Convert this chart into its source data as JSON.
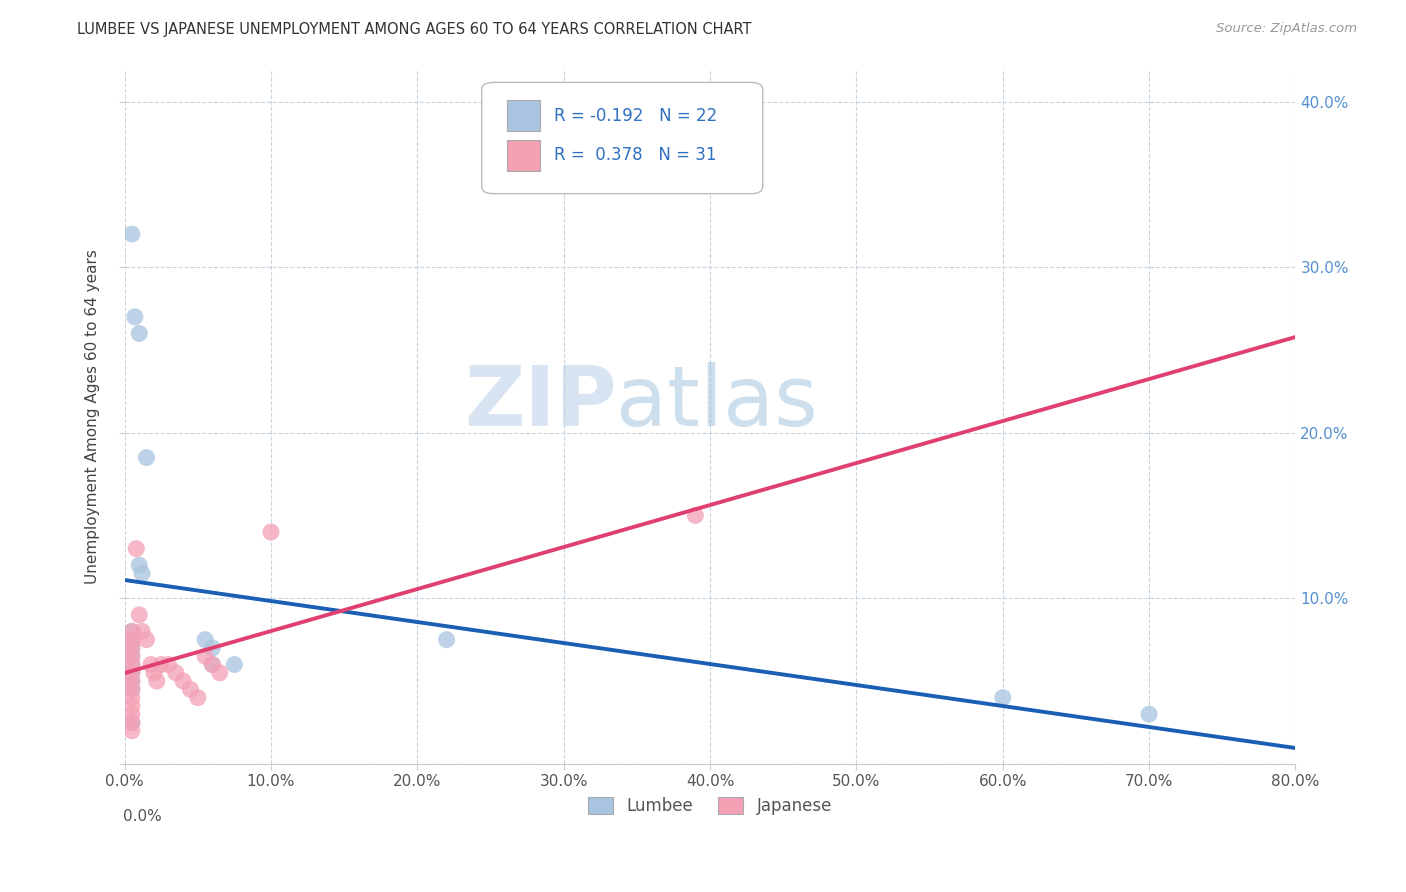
{
  "title": "LUMBEE VS JAPANESE UNEMPLOYMENT AMONG AGES 60 TO 64 YEARS CORRELATION CHART",
  "source": "Source: ZipAtlas.com",
  "ylabel": "Unemployment Among Ages 60 to 64 years",
  "xlim": [
    0,
    0.8
  ],
  "ylim": [
    0,
    0.42
  ],
  "xticks": [
    0.0,
    0.1,
    0.2,
    0.3,
    0.4,
    0.5,
    0.6,
    0.7,
    0.8
  ],
  "xticklabels": [
    "0.0%",
    "10.0%",
    "20.0%",
    "30.0%",
    "40.0%",
    "50.0%",
    "60.0%",
    "70.0%",
    "80.0%"
  ],
  "yticks": [
    0.0,
    0.1,
    0.2,
    0.3,
    0.4
  ],
  "yticklabels": [
    "",
    "10.0%",
    "20.0%",
    "30.0%",
    "40.0%"
  ],
  "lumbee_x": [
    0.005,
    0.007,
    0.01,
    0.01,
    0.012,
    0.015,
    0.005,
    0.005,
    0.005,
    0.005,
    0.005,
    0.005,
    0.005,
    0.005,
    0.005,
    0.055,
    0.06,
    0.06,
    0.075,
    0.22,
    0.6,
    0.7
  ],
  "lumbee_y": [
    0.32,
    0.27,
    0.26,
    0.12,
    0.115,
    0.185,
    0.08,
    0.075,
    0.07,
    0.065,
    0.06,
    0.055,
    0.05,
    0.045,
    0.025,
    0.075,
    0.07,
    0.06,
    0.06,
    0.075,
    0.04,
    0.03
  ],
  "japanese_x": [
    0.005,
    0.005,
    0.005,
    0.005,
    0.005,
    0.005,
    0.005,
    0.005,
    0.005,
    0.005,
    0.005,
    0.005,
    0.005,
    0.008,
    0.01,
    0.012,
    0.015,
    0.018,
    0.02,
    0.022,
    0.025,
    0.03,
    0.035,
    0.04,
    0.045,
    0.05,
    0.055,
    0.06,
    0.065,
    0.1,
    0.39
  ],
  "japanese_y": [
    0.08,
    0.075,
    0.07,
    0.065,
    0.06,
    0.055,
    0.05,
    0.045,
    0.04,
    0.035,
    0.03,
    0.025,
    0.02,
    0.13,
    0.09,
    0.08,
    0.075,
    0.06,
    0.055,
    0.05,
    0.06,
    0.06,
    0.055,
    0.05,
    0.045,
    0.04,
    0.065,
    0.06,
    0.055,
    0.14,
    0.15
  ],
  "lumbee_color": "#a8c4e0",
  "japanese_color": "#f4a0b5",
  "lumbee_line_color": "#1a5fb4",
  "japanese_line_color": "#e04070",
  "lumbee_r": -0.192,
  "lumbee_n": 22,
  "japanese_r": 0.378,
  "japanese_n": 31,
  "background_color": "#ffffff",
  "grid_color": "#c8d4e0",
  "legend_lumbee": "Lumbee",
  "legend_japanese": "Japanese"
}
